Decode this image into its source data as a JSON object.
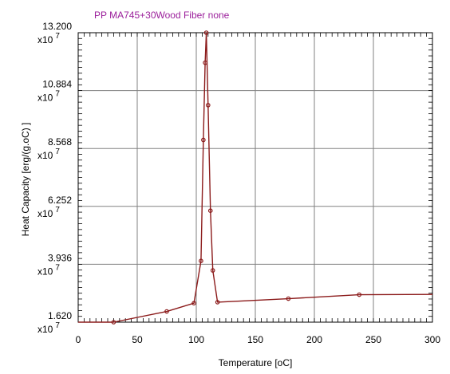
{
  "chart_data": {
    "type": "line",
    "title": "PP   MA745+30Wood Fiber   none",
    "xlabel": "Temperature [oC]",
    "ylabel": "Heat Capacity [erg/(g.oC) ]",
    "xlim": [
      0,
      300
    ],
    "ylim": [
      1.62,
      13.2
    ],
    "y_scale_exponent_label": "x10",
    "y_scale_exponent": "7",
    "x_ticks": [
      {
        "value": 0,
        "label": "0"
      },
      {
        "value": 50,
        "label": "50"
      },
      {
        "value": 100,
        "label": "100"
      },
      {
        "value": 150,
        "label": "150"
      },
      {
        "value": 200,
        "label": "200"
      },
      {
        "value": 250,
        "label": "250"
      },
      {
        "value": 300,
        "label": "300"
      }
    ],
    "y_ticks": [
      {
        "value": 1.62,
        "label": "1.620"
      },
      {
        "value": 3.936,
        "label": "3.936"
      },
      {
        "value": 6.252,
        "label": "6.252"
      },
      {
        "value": 8.568,
        "label": "8.568"
      },
      {
        "value": 10.884,
        "label": "10.884"
      },
      {
        "value": 13.2,
        "label": "13.200"
      }
    ],
    "grid": true,
    "series": [
      {
        "color": "#8b1a1a",
        "points": [
          {
            "x": 0,
            "y": 1.62,
            "marker": false
          },
          {
            "x": 30,
            "y": 1.62,
            "marker": true
          },
          {
            "x": 75,
            "y": 2.05,
            "marker": true
          },
          {
            "x": 98,
            "y": 2.38,
            "marker": true
          },
          {
            "x": 104,
            "y": 4.07,
            "marker": true
          },
          {
            "x": 106,
            "y": 8.91,
            "marker": true
          },
          {
            "x": 107.5,
            "y": 12.0,
            "marker": true
          },
          {
            "x": 108.5,
            "y": 13.2,
            "marker": true
          },
          {
            "x": 110,
            "y": 10.3,
            "marker": true
          },
          {
            "x": 112,
            "y": 6.08,
            "marker": true
          },
          {
            "x": 114,
            "y": 3.69,
            "marker": true
          },
          {
            "x": 118,
            "y": 2.42,
            "marker": true
          },
          {
            "x": 178,
            "y": 2.56,
            "marker": true
          },
          {
            "x": 238,
            "y": 2.72,
            "marker": true
          },
          {
            "x": 300,
            "y": 2.73,
            "marker": false
          }
        ]
      }
    ]
  }
}
